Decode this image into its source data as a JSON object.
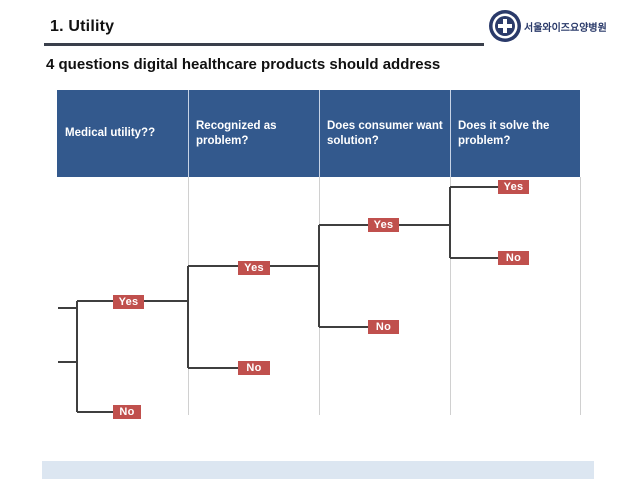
{
  "slide": {
    "section_title": "1. Utility",
    "subtitle": "4 questions digital healthcare products should address",
    "logo_text": "서울와이즈요양병원"
  },
  "table": {
    "headers": [
      "Medical utility??",
      "Recognized as problem?",
      "Does consumer want solution?",
      "Does it solve the problem?"
    ]
  },
  "tree": {
    "level1": {
      "yes": "Yes",
      "no": "No"
    },
    "level2": {
      "yes": "Yes",
      "no": "No"
    },
    "level3": {
      "yes": "Yes",
      "no": "No"
    },
    "level4": {
      "yes": "Yes",
      "no": "No"
    }
  },
  "colors": {
    "header_bg": "#33598d",
    "badge_bg": "#c0504d",
    "tree_line": "#3f3f3f",
    "footer_bg": "#dce6f1"
  }
}
